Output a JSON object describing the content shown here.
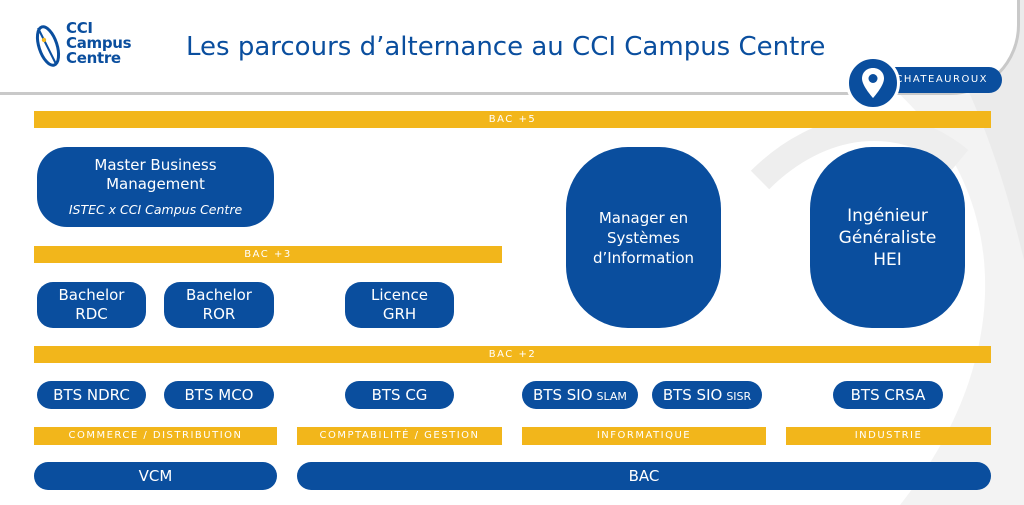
{
  "header": {
    "logo_lines": [
      "CCI",
      "Campus",
      "Centre"
    ],
    "title": "Les parcours d’alternance au CCI Campus Centre",
    "location": "CHATEAUROUX"
  },
  "levels": {
    "bac5": "BAC +5",
    "bac3": "BAC +3",
    "bac2": "BAC +2"
  },
  "programs": {
    "master": {
      "line1": "Master Business",
      "line2": "Management",
      "partner": "ISTEC x CCI Campus Centre"
    },
    "manager": {
      "line1": "Manager en",
      "line2": "Systèmes",
      "line3": "d’Information"
    },
    "ingenieur": {
      "line1": "Ingénieur",
      "line2": "Généraliste",
      "line3": "HEI"
    },
    "bachelor_rdc": {
      "line1": "Bachelor",
      "line2": "RDC"
    },
    "bachelor_ror": {
      "line1": "Bachelor",
      "line2": "ROR"
    },
    "licence_grh": {
      "line1": "Licence",
      "line2": "GRH"
    },
    "bts_ndrc": "BTS NDRC",
    "bts_mco": "BTS MCO",
    "bts_cg": "BTS CG",
    "bts_sio_slam": {
      "main": "BTS SIO",
      "option": "SLAM"
    },
    "bts_sio_sisr": {
      "main": "BTS SIO",
      "option": "SISR"
    },
    "bts_crsa": "BTS CRSA"
  },
  "domains": {
    "commerce": "COMMERCE / DISTRIBUTION",
    "comptabilite": "COMPTABILITÉ / GESTION",
    "informatique": "INFORMATIQUE",
    "industrie": "INDUSTRIE"
  },
  "entry": {
    "vcm": "VCM",
    "bac": "BAC"
  },
  "colors": {
    "brand_blue": "#0a4e9e",
    "accent_yellow": "#f2b61b",
    "header_border": "#c9c9c9"
  }
}
